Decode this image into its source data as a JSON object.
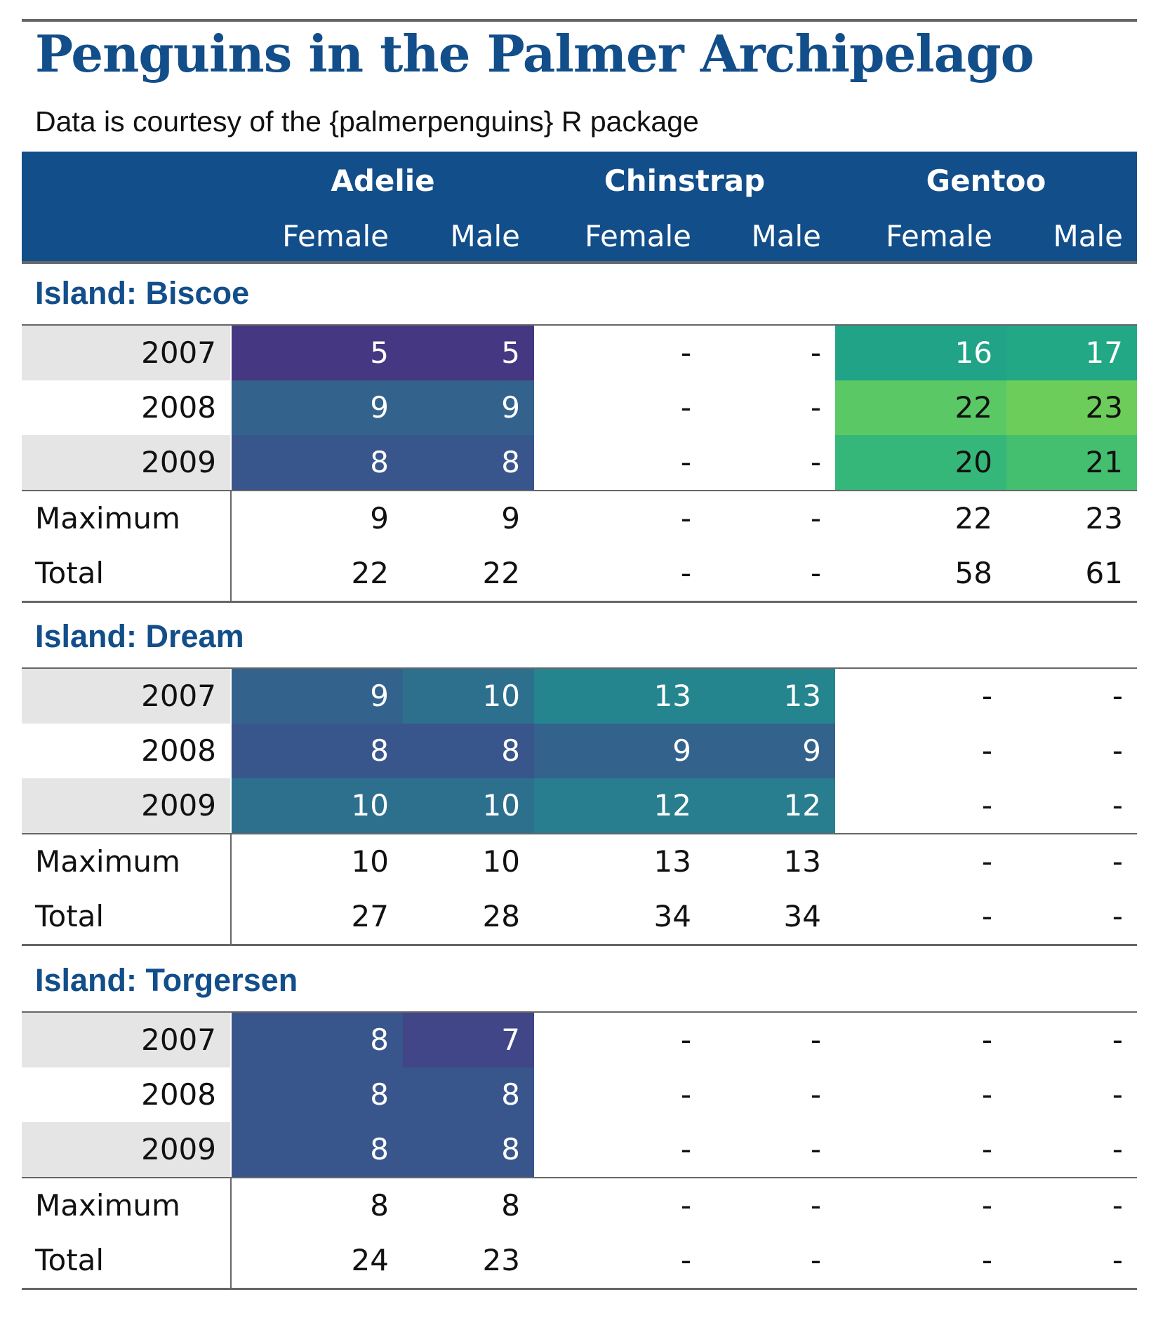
{
  "title": "Penguins in the Palmer Archipelago",
  "subtitle": "Data is courtesy of the {palmerpenguins} R package",
  "species": [
    "Adelie",
    "Chinstrap",
    "Gentoo"
  ],
  "sexes": [
    "Female",
    "Male",
    "Female",
    "Male",
    "Female",
    "Male"
  ],
  "groups": [
    {
      "title": "Island: Biscoe",
      "rows": [
        {
          "year": "2007",
          "values": [
            "5",
            "5",
            "-",
            "-",
            "16",
            "17"
          ],
          "colors": [
            "#453781",
            "#453781",
            null,
            null,
            "#20a386",
            "#22a884"
          ],
          "text_colors": [
            "#ffffff",
            "#ffffff",
            "#111111",
            "#111111",
            "#ffffff",
            "#ffffff"
          ]
        },
        {
          "year": "2008",
          "values": [
            "9",
            "9",
            "-",
            "-",
            "22",
            "23"
          ],
          "colors": [
            "#33638d",
            "#33638d",
            null,
            null,
            "#5ac864",
            "#6ccd5a"
          ],
          "text_colors": [
            "#ffffff",
            "#ffffff",
            "#111111",
            "#111111",
            "#111111",
            "#111111"
          ]
        },
        {
          "year": "2009",
          "values": [
            "8",
            "8",
            "-",
            "-",
            "20",
            "21"
          ],
          "colors": [
            "#39568c",
            "#39568c",
            null,
            null,
            "#35b779",
            "#44bf70"
          ],
          "text_colors": [
            "#ffffff",
            "#ffffff",
            "#111111",
            "#111111",
            "#111111",
            "#111111"
          ]
        }
      ],
      "summary": [
        {
          "label": "Maximum",
          "values": [
            "9",
            "9",
            "-",
            "-",
            "22",
            "23"
          ]
        },
        {
          "label": "Total",
          "values": [
            "22",
            "22",
            "-",
            "-",
            "58",
            "61"
          ]
        }
      ]
    },
    {
      "title": "Island: Dream",
      "rows": [
        {
          "year": "2007",
          "values": [
            "9",
            "10",
            "13",
            "13",
            "-",
            "-"
          ],
          "colors": [
            "#33638d",
            "#2d708e",
            "#25858e",
            "#25858e",
            null,
            null
          ],
          "text_colors": [
            "#ffffff",
            "#ffffff",
            "#ffffff",
            "#ffffff",
            "#111111",
            "#111111"
          ]
        },
        {
          "year": "2008",
          "values": [
            "8",
            "8",
            "9",
            "9",
            "-",
            "-"
          ],
          "colors": [
            "#39568c",
            "#39568c",
            "#33638d",
            "#33638d",
            null,
            null
          ],
          "text_colors": [
            "#ffffff",
            "#ffffff",
            "#ffffff",
            "#ffffff",
            "#111111",
            "#111111"
          ]
        },
        {
          "year": "2009",
          "values": [
            "10",
            "10",
            "12",
            "12",
            "-",
            "-"
          ],
          "colors": [
            "#2d708e",
            "#2d708e",
            "#287d8e",
            "#287d8e",
            null,
            null
          ],
          "text_colors": [
            "#ffffff",
            "#ffffff",
            "#ffffff",
            "#ffffff",
            "#111111",
            "#111111"
          ]
        }
      ],
      "summary": [
        {
          "label": "Maximum",
          "values": [
            "10",
            "10",
            "13",
            "13",
            "-",
            "-"
          ]
        },
        {
          "label": "Total",
          "values": [
            "27",
            "28",
            "34",
            "34",
            "-",
            "-"
          ]
        }
      ]
    },
    {
      "title": "Island: Torgersen",
      "rows": [
        {
          "year": "2007",
          "values": [
            "8",
            "7",
            "-",
            "-",
            "-",
            "-"
          ],
          "colors": [
            "#39568c",
            "#404688",
            null,
            null,
            null,
            null
          ],
          "text_colors": [
            "#ffffff",
            "#ffffff",
            "#111111",
            "#111111",
            "#111111",
            "#111111"
          ]
        },
        {
          "year": "2008",
          "values": [
            "8",
            "8",
            "-",
            "-",
            "-",
            "-"
          ],
          "colors": [
            "#39568c",
            "#39568c",
            null,
            null,
            null,
            null
          ],
          "text_colors": [
            "#ffffff",
            "#ffffff",
            "#111111",
            "#111111",
            "#111111",
            "#111111"
          ]
        },
        {
          "year": "2009",
          "values": [
            "8",
            "8",
            "-",
            "-",
            "-",
            "-"
          ],
          "colors": [
            "#39568c",
            "#39568c",
            null,
            null,
            null,
            null
          ],
          "text_colors": [
            "#ffffff",
            "#ffffff",
            "#111111",
            "#111111",
            "#111111",
            "#111111"
          ]
        }
      ],
      "summary": [
        {
          "label": "Maximum",
          "values": [
            "8",
            "8",
            "-",
            "-",
            "-",
            "-"
          ]
        },
        {
          "label": "Total",
          "values": [
            "24",
            "23",
            "-",
            "-",
            "-",
            "-"
          ]
        }
      ]
    }
  ],
  "colors": {
    "title": "#124e8a",
    "header_bg": "#124e8a",
    "stub_shade": "#e5e5e5",
    "rule": "#666666"
  }
}
